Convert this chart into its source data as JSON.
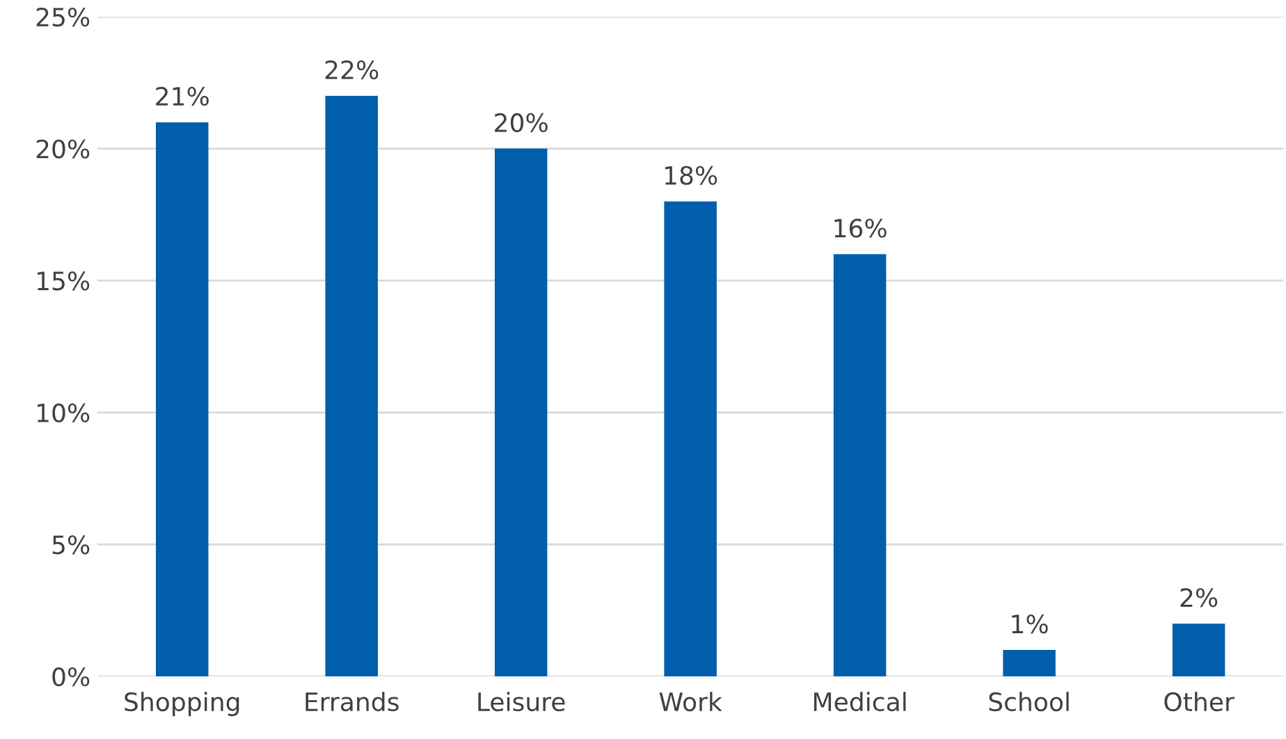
{
  "chart_data": {
    "type": "bar",
    "categories": [
      "Shopping",
      "Errands",
      "Leisure",
      "Work",
      "Medical",
      "School",
      "Other"
    ],
    "values": [
      21,
      22,
      20,
      18,
      16,
      1,
      2
    ],
    "value_labels": [
      "21%",
      "22%",
      "20%",
      "18%",
      "16%",
      "1%",
      "2%"
    ],
    "color": "#005eac",
    "ylim": [
      0,
      25
    ],
    "yticks": [
      {
        "value": 0,
        "label": "0%"
      },
      {
        "value": 5,
        "label": "5%"
      },
      {
        "value": 10,
        "label": "10%"
      },
      {
        "value": 15,
        "label": "15%"
      },
      {
        "value": 20,
        "label": "20%"
      },
      {
        "value": 25,
        "label": "25%"
      }
    ],
    "grid": "y",
    "legend": false
  }
}
